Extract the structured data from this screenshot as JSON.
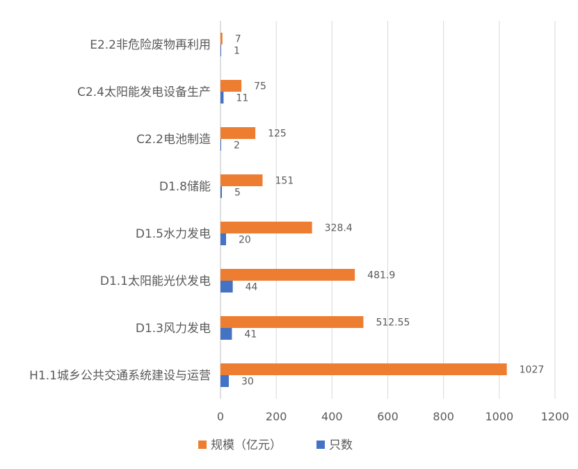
{
  "chart_data": {
    "type": "bar",
    "orientation": "horizontal",
    "categories": [
      "E2.2非危险废物再利用",
      "C2.4太阳能发电设备生产",
      "C2.2电池制造",
      "D1.8储能",
      "D1.5水力发电",
      "D1.1太阳能光伏发电",
      "D1.3风力发电",
      "H1.1城乡公共交通系统建设与运营"
    ],
    "series": [
      {
        "name": "规模（亿元）",
        "color": "#ED7D31",
        "values": [
          7,
          75,
          125,
          151,
          328.4,
          481.9,
          512.55,
          1027
        ],
        "labels": [
          "7",
          "75",
          "125",
          "151",
          "328.4",
          "481.9",
          "512.55",
          "1027"
        ]
      },
      {
        "name": "只数",
        "color": "#4472C4",
        "values": [
          1,
          11,
          2,
          5,
          20,
          44,
          41,
          30
        ],
        "labels": [
          "1",
          "11",
          "2",
          "5",
          "20",
          "44",
          "41",
          "30"
        ]
      }
    ],
    "xlim": [
      0,
      1200
    ],
    "xticks": [
      0,
      200,
      400,
      600,
      800,
      1000,
      1200
    ],
    "xtick_labels": [
      "0",
      "200",
      "400",
      "600",
      "800",
      "1000",
      "1200"
    ],
    "grid": true,
    "legend_position": "bottom"
  }
}
